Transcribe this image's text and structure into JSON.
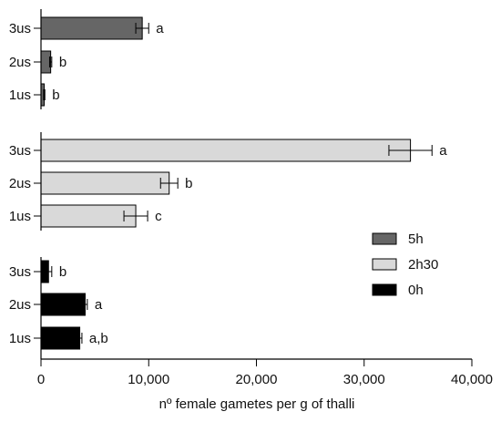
{
  "chart_data": {
    "type": "bar",
    "orientation": "horizontal",
    "title": "",
    "xlabel": "nº female gametes per g of thalli",
    "ylabel": "",
    "xlim": [
      0,
      40000
    ],
    "xticks": [
      0,
      10000,
      20000,
      30000,
      40000
    ],
    "xtick_labels": [
      "0",
      "10,000",
      "20,000",
      "30,000",
      "40,000"
    ],
    "grid": false,
    "legend_position": "right",
    "legend_order": [
      "5h",
      "2h30",
      "0h"
    ],
    "groups": [
      {
        "name": "5h",
        "color": "#666666",
        "bars": [
          {
            "category": "3us",
            "value": 9400,
            "error": 600,
            "label": "a"
          },
          {
            "category": "2us",
            "value": 900,
            "error": 100,
            "label": "b"
          },
          {
            "category": "1us",
            "value": 300,
            "error": 60,
            "label": "b"
          }
        ]
      },
      {
        "name": "2h30",
        "color": "#d9d9d9",
        "bars": [
          {
            "category": "3us",
            "value": 34300,
            "error": 2000,
            "label": "a"
          },
          {
            "category": "2us",
            "value": 11900,
            "error": 800,
            "label": "b"
          },
          {
            "category": "1us",
            "value": 8800,
            "error": 1100,
            "label": "c"
          }
        ]
      },
      {
        "name": "0h",
        "color": "#000000",
        "bars": [
          {
            "category": "3us",
            "value": 700,
            "error": 300,
            "label": "b"
          },
          {
            "category": "2us",
            "value": 4100,
            "error": 200,
            "label": "a"
          },
          {
            "category": "1us",
            "value": 3600,
            "error": 200,
            "label": "a,b"
          }
        ]
      }
    ]
  }
}
